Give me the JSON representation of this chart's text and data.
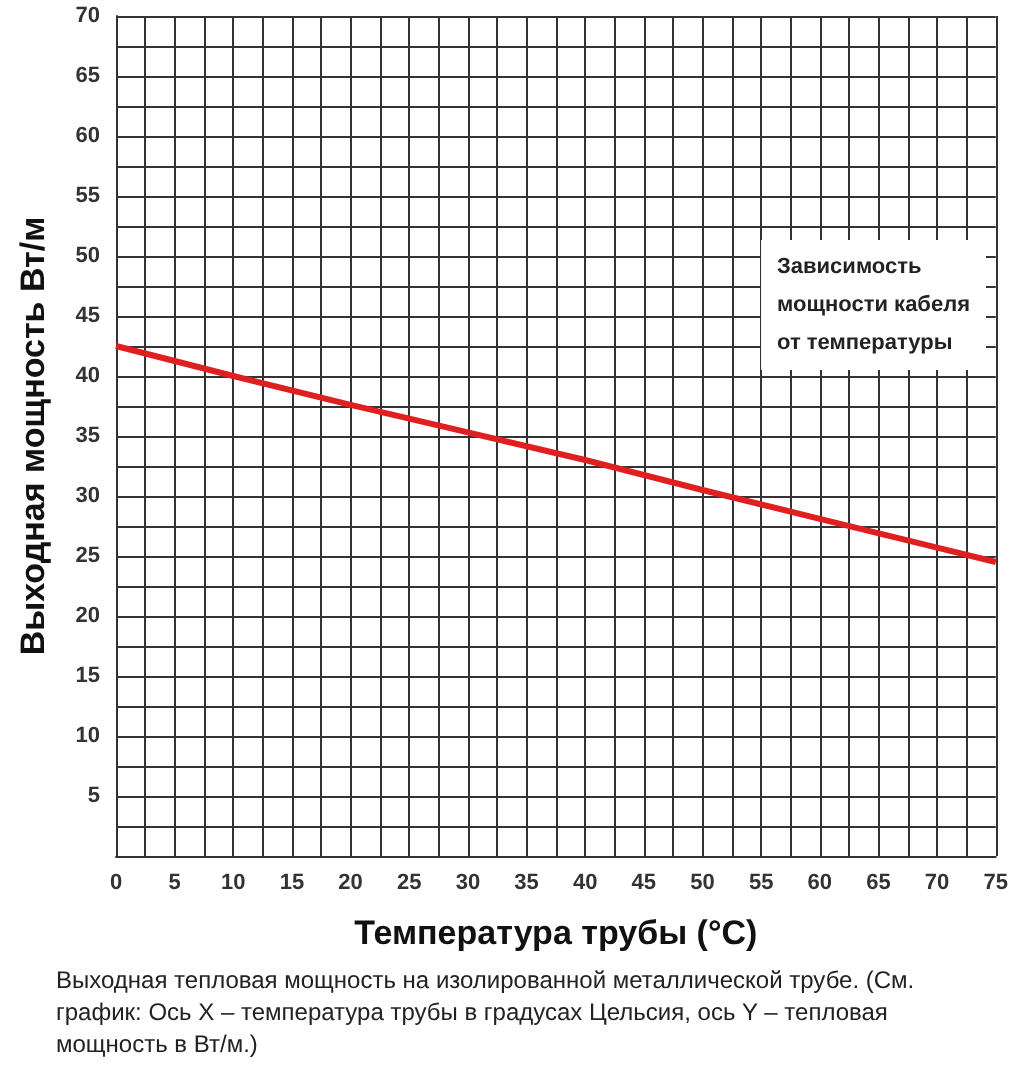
{
  "chart_data": {
    "type": "line",
    "xlabel": "Температура трубы (°C)",
    "ylabel": "Выходная мощность Вт/м",
    "annotations": [
      "Зависимость\nмощности кабеля\nот температуры",
      "Выходная тепловая мощность на изолированной металлической трубе. (См. график: Ось X – температура трубы в градусах Цельсия, ось Y – тепловая мощность в Вт/м.)"
    ],
    "x": [
      0,
      10,
      20,
      30,
      40,
      50,
      60,
      70,
      75
    ],
    "series": [
      {
        "color": "#e02020",
        "values": [
          42.5,
          40,
          37.6,
          35.3,
          33,
          30.5,
          28.1,
          25.7,
          24.5
        ]
      }
    ],
    "xlim": [
      0,
      75
    ],
    "ylim": [
      0,
      70
    ],
    "xticks": [
      0,
      {
        "value": 2.5,
        "label": null
      },
      5,
      {
        "value": 7.5,
        "label": null
      },
      10,
      {
        "value": 12.5,
        "label": null
      },
      15,
      {
        "value": 17.5,
        "label": null
      },
      20,
      {
        "value": 22.5,
        "label": null
      },
      25,
      {
        "value": 27.5,
        "label": null
      },
      30,
      {
        "value": 32.5,
        "label": null
      },
      35,
      {
        "value": 37.5,
        "label": null
      },
      40,
      {
        "value": 42.5,
        "label": null
      },
      45,
      {
        "value": 47.5,
        "label": null
      },
      50,
      {
        "value": 52.5,
        "label": null
      },
      55,
      {
        "value": 57.5,
        "label": null
      },
      60,
      {
        "value": 62.5,
        "label": null
      },
      65,
      {
        "value": 67.5,
        "label": null
      },
      70,
      {
        "value": 72.5,
        "label": null
      },
      75
    ],
    "yticks": [
      {
        "value": 0,
        "label": null
      },
      {
        "value": 2.5,
        "label": null
      },
      5,
      {
        "value": 7.5,
        "label": null
      },
      10,
      {
        "value": 12.5,
        "label": null
      },
      15,
      {
        "value": 17.5,
        "label": null
      },
      20,
      {
        "value": 22.5,
        "label": null
      },
      25,
      {
        "value": 27.5,
        "label": null
      },
      30,
      {
        "value": 32.5,
        "label": null
      },
      35,
      {
        "value": 37.5,
        "label": null
      },
      40,
      {
        "value": 42.5,
        "label": null
      },
      45,
      {
        "value": 47.5,
        "label": null
      },
      50,
      {
        "value": 52.5,
        "label": null
      },
      55,
      {
        "value": 57.5,
        "label": null
      },
      60,
      {
        "value": 62.5,
        "label": null
      },
      65,
      {
        "value": 67.5,
        "label": null
      },
      70
    ],
    "grid": true,
    "marker": "none",
    "line_style": "solid"
  }
}
